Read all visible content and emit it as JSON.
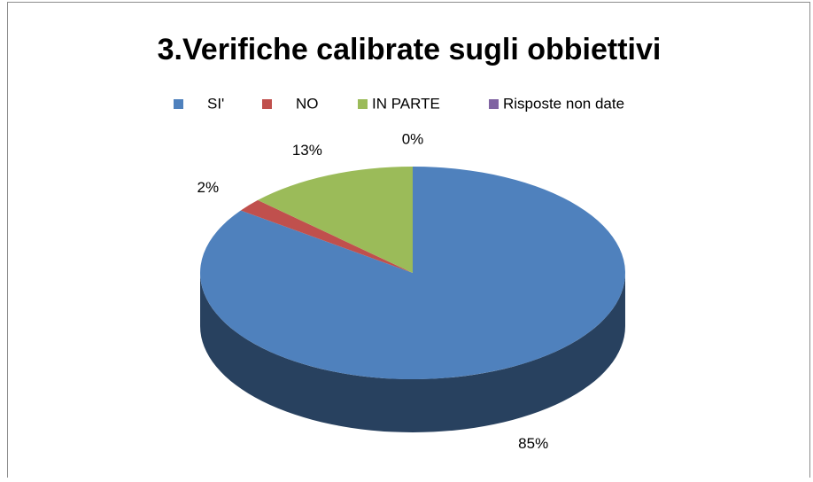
{
  "chart_data": {
    "type": "pie",
    "title": "3.Verifiche calibrate sugli obbiettivi",
    "categories": [
      "SI'",
      "NO",
      "IN PARTE",
      "Risposte non date"
    ],
    "values": [
      85,
      2,
      13,
      0
    ],
    "value_labels": [
      "85%",
      "2%",
      "13%",
      "0%"
    ],
    "colors": [
      "#4f81bd",
      "#c0504d",
      "#9bbb59",
      "#8064a2"
    ],
    "legend": "top"
  }
}
